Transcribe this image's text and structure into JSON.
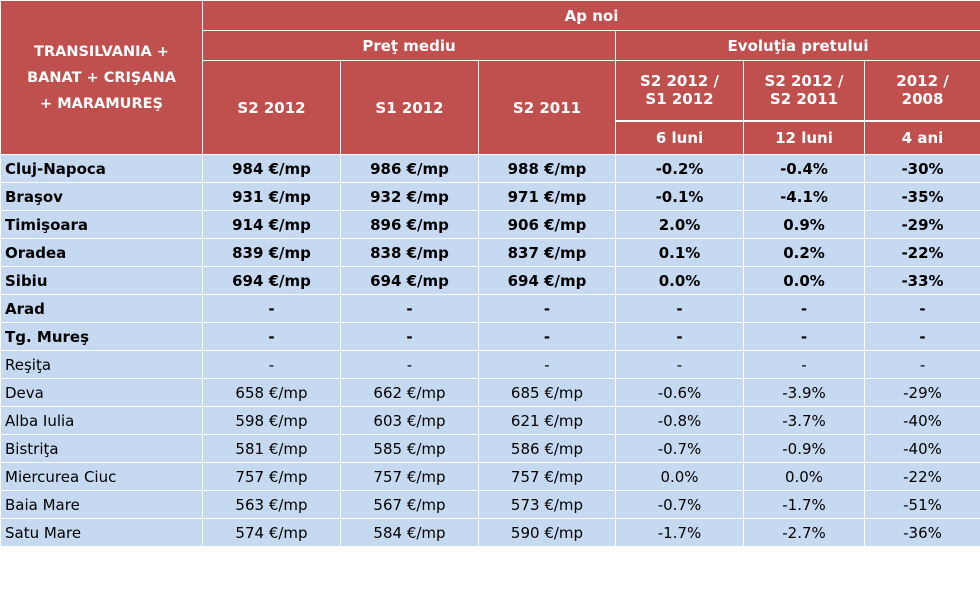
{
  "header": {
    "region": [
      "TRANSILVANIA +",
      "BANAT + CRIŞANA",
      "+ MARAMUREŞ"
    ],
    "group": "Ap noi",
    "price_group": "Preţ mediu",
    "evolution_group": "Evoluţia pretului",
    "price_cols": [
      "S2 2012",
      "S1 2012",
      "S2 2011"
    ],
    "evo_cols": [
      {
        "line1": "S2 2012  /",
        "line2": "S1 2012",
        "period": "6 luni"
      },
      {
        "line1": "S2 2012  /",
        "line2": "S2 2011",
        "period": "12 luni"
      },
      {
        "line1": "2012  /",
        "line2": "2008",
        "period": "4 ani"
      }
    ]
  },
  "rows": [
    {
      "city": "Cluj-Napoca",
      "bold": true,
      "values": [
        "984 €/mp",
        "986 €/mp",
        "988 €/mp",
        "-0.2%",
        "-0.4%",
        "-30%"
      ]
    },
    {
      "city": "Braşov",
      "bold": true,
      "values": [
        "931 €/mp",
        "932 €/mp",
        "971 €/mp",
        "-0.1%",
        "-4.1%",
        "-35%"
      ]
    },
    {
      "city": "Timişoara",
      "bold": true,
      "values": [
        "914 €/mp",
        "896 €/mp",
        "906 €/mp",
        "2.0%",
        "0.9%",
        "-29%"
      ]
    },
    {
      "city": "Oradea",
      "bold": true,
      "values": [
        "839 €/mp",
        "838 €/mp",
        "837 €/mp",
        "0.1%",
        "0.2%",
        "-22%"
      ]
    },
    {
      "city": "Sibiu",
      "bold": true,
      "values": [
        "694 €/mp",
        "694 €/mp",
        "694 €/mp",
        "0.0%",
        "0.0%",
        "-33%"
      ]
    },
    {
      "city": "Arad",
      "bold": true,
      "values": [
        "-",
        "-",
        "-",
        "-",
        "-",
        "-"
      ]
    },
    {
      "city": "Tg. Mureş",
      "bold": true,
      "values": [
        "-",
        "-",
        "-",
        "-",
        "-",
        "-"
      ]
    },
    {
      "city": "Reşiţa",
      "bold": false,
      "values": [
        "-",
        "-",
        "-",
        "-",
        "-",
        "-"
      ]
    },
    {
      "city": "Deva",
      "bold": false,
      "values": [
        "658 €/mp",
        "662 €/mp",
        "685 €/mp",
        "-0.6%",
        "-3.9%",
        "-29%"
      ]
    },
    {
      "city": "Alba Iulia",
      "bold": false,
      "values": [
        "598 €/mp",
        "603 €/mp",
        "621 €/mp",
        "-0.8%",
        "-3.7%",
        "-40%"
      ]
    },
    {
      "city": "Bistriţa",
      "bold": false,
      "values": [
        "581 €/mp",
        "585 €/mp",
        "586 €/mp",
        "-0.7%",
        "-0.9%",
        "-40%"
      ]
    },
    {
      "city": "Miercurea Ciuc",
      "bold": false,
      "values": [
        "757 €/mp",
        "757 €/mp",
        "757 €/mp",
        "0.0%",
        "0.0%",
        "-22%"
      ]
    },
    {
      "city": "Baia Mare",
      "bold": false,
      "values": [
        "563 €/mp",
        "567 €/mp",
        "573 €/mp",
        "-0.7%",
        "-1.7%",
        "-51%"
      ]
    },
    {
      "city": "Satu Mare",
      "bold": false,
      "values": [
        "574 €/mp",
        "584 €/mp",
        "590 €/mp",
        "-1.7%",
        "-2.7%",
        "-36%"
      ]
    }
  ]
}
